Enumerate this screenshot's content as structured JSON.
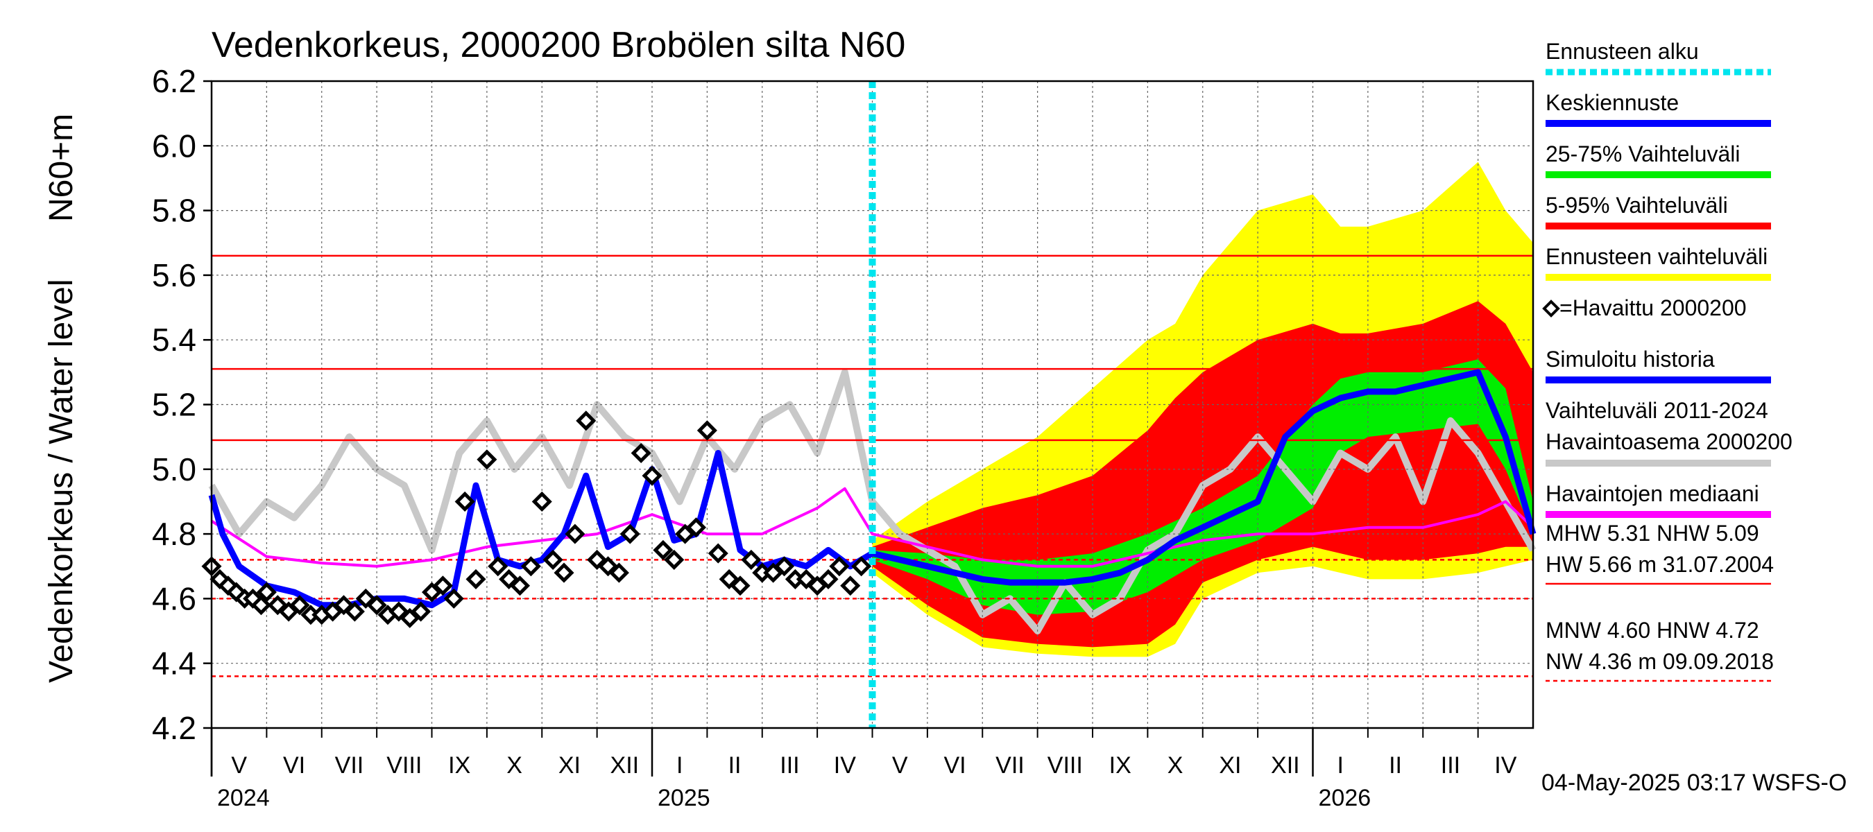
{
  "chart_data": {
    "type": "area",
    "title": "Vedenkorkeus, 2000200 Brobölen silta N60",
    "ylabel_top": "N60+m",
    "ylabel": "Vedenkorkeus / Water level",
    "ylim": [
      4.2,
      6.2
    ],
    "yticks": [
      "6.2",
      "6.0",
      "5.8",
      "5.6",
      "5.4",
      "5.2",
      "5.0",
      "4.8",
      "4.6",
      "4.4",
      "4.2"
    ],
    "months": [
      "V",
      "VI",
      "VII",
      "VIII",
      "IX",
      "X",
      "XI",
      "XII",
      "I",
      "II",
      "III",
      "IV",
      "V",
      "VI",
      "VII",
      "VIII",
      "IX",
      "X",
      "XI",
      "XII",
      "I",
      "II",
      "III",
      "IV"
    ],
    "years": [
      {
        "label": "2024",
        "month_index": 0
      },
      {
        "label": "2025",
        "month_index": 8
      },
      {
        "label": "2026",
        "month_index": 20
      }
    ],
    "forecast_start_month": 12,
    "grid": true,
    "reference_lines": [
      {
        "name": "HW",
        "value": 5.66,
        "style": "solid"
      },
      {
        "name": "MHW",
        "value": 5.31,
        "style": "solid"
      },
      {
        "name": "NHW",
        "value": 5.09,
        "style": "solid"
      },
      {
        "name": "HNW",
        "value": 4.72,
        "style": "dashed"
      },
      {
        "name": "MNW",
        "value": 4.6,
        "style": "dashed"
      },
      {
        "name": "NW",
        "value": 4.36,
        "style": "dashed"
      }
    ],
    "series": [
      {
        "name": "Keskiennuste",
        "kind": "line",
        "color": "#0000ff",
        "x": [
          0,
          0.2,
          0.5,
          1,
          1.5,
          2,
          2.5,
          3,
          3.5,
          4,
          4.4,
          4.8,
          5.2,
          5.6,
          6,
          6.4,
          6.8,
          7.2,
          7.6,
          8,
          8.4,
          8.8,
          9.2,
          9.6,
          10,
          10.4,
          10.8,
          11.2,
          11.6,
          12,
          12.5,
          13,
          13.5,
          14,
          14.5,
          15,
          15.5,
          16,
          16.5,
          17,
          17.5,
          18,
          18.5,
          19,
          19.5,
          20,
          20.5,
          21,
          21.5,
          22,
          22.5,
          23,
          23.5,
          24
        ],
        "y": [
          4.92,
          4.8,
          4.7,
          4.64,
          4.62,
          4.58,
          4.58,
          4.6,
          4.6,
          4.58,
          4.62,
          4.95,
          4.72,
          4.7,
          4.72,
          4.8,
          4.98,
          4.76,
          4.8,
          5.0,
          4.78,
          4.8,
          5.05,
          4.75,
          4.7,
          4.72,
          4.7,
          4.75,
          4.7,
          4.74,
          4.72,
          4.7,
          4.68,
          4.66,
          4.65,
          4.65,
          4.65,
          4.66,
          4.68,
          4.72,
          4.78,
          4.82,
          4.86,
          4.9,
          5.1,
          5.18,
          5.22,
          5.24,
          5.24,
          5.26,
          5.28,
          5.3,
          5.1,
          4.8
        ]
      },
      {
        "name": "Havaintojen mediaani",
        "kind": "line",
        "color": "#ff00ff",
        "x": [
          0,
          1,
          2,
          3,
          4,
          5,
          6,
          7,
          8,
          9,
          10,
          11,
          11.5,
          12,
          13,
          14,
          15,
          16,
          17,
          18,
          19,
          20,
          21,
          22,
          23,
          23.5,
          24
        ],
        "y": [
          4.84,
          4.73,
          4.71,
          4.7,
          4.72,
          4.76,
          4.78,
          4.8,
          4.86,
          4.8,
          4.8,
          4.88,
          4.94,
          4.8,
          4.76,
          4.72,
          4.7,
          4.7,
          4.74,
          4.78,
          4.8,
          4.8,
          4.82,
          4.82,
          4.86,
          4.9,
          4.82
        ]
      },
      {
        "name": "Ennusteen vaihteluväli",
        "kind": "band",
        "color": "#ffff00",
        "x": [
          12,
          13,
          14,
          15,
          16,
          17,
          17.5,
          18,
          19,
          20,
          20.5,
          21,
          22,
          23,
          23.5,
          24
        ],
        "low": [
          4.68,
          4.55,
          4.45,
          4.43,
          4.42,
          4.42,
          4.46,
          4.6,
          4.68,
          4.7,
          4.68,
          4.66,
          4.66,
          4.68,
          4.7,
          4.72
        ],
        "high": [
          4.78,
          4.9,
          5.0,
          5.1,
          5.25,
          5.4,
          5.45,
          5.6,
          5.8,
          5.85,
          5.75,
          5.75,
          5.8,
          5.95,
          5.8,
          5.7
        ]
      },
      {
        "name": "5-95% Vaihteluväli",
        "kind": "band",
        "color": "#ff0000",
        "x": [
          12,
          13,
          14,
          15,
          16,
          17,
          17.5,
          18,
          19,
          20,
          20.5,
          21,
          22,
          23,
          23.5,
          24
        ],
        "low": [
          4.7,
          4.58,
          4.48,
          4.46,
          4.45,
          4.46,
          4.52,
          4.65,
          4.72,
          4.76,
          4.74,
          4.72,
          4.72,
          4.74,
          4.76,
          4.76
        ],
        "high": [
          4.76,
          4.82,
          4.88,
          4.92,
          4.98,
          5.12,
          5.22,
          5.3,
          5.4,
          5.45,
          5.42,
          5.42,
          5.45,
          5.52,
          5.45,
          5.3
        ]
      },
      {
        "name": "25-75% Vaihteluväli",
        "kind": "band",
        "color": "#00ee00",
        "x": [
          12,
          13,
          14,
          15,
          16,
          17,
          18,
          19,
          20,
          20.5,
          21,
          22,
          23,
          23.5,
          24
        ],
        "low": [
          4.72,
          4.66,
          4.58,
          4.55,
          4.56,
          4.62,
          4.72,
          4.78,
          4.88,
          5.05,
          5.1,
          5.12,
          5.14,
          5.0,
          4.8
        ],
        "high": [
          4.75,
          4.74,
          4.72,
          4.72,
          4.74,
          4.8,
          4.88,
          4.98,
          5.2,
          5.28,
          5.3,
          5.3,
          5.34,
          5.25,
          4.9
        ]
      },
      {
        "name": "Havaittu 2000200",
        "kind": "markers",
        "color": "#000000",
        "x": [
          0,
          0.15,
          0.3,
          0.45,
          0.6,
          0.75,
          0.9,
          1.0,
          1.2,
          1.4,
          1.6,
          1.8,
          2.0,
          2.2,
          2.4,
          2.6,
          2.8,
          3.0,
          3.2,
          3.4,
          3.6,
          3.8,
          4.0,
          4.2,
          4.4,
          4.6,
          4.8,
          5.0,
          5.2,
          5.4,
          5.6,
          5.8,
          6.0,
          6.2,
          6.4,
          6.6,
          6.8,
          7.0,
          7.2,
          7.4,
          7.6,
          7.8,
          8.0,
          8.2,
          8.4,
          8.6,
          8.8,
          9.0,
          9.2,
          9.4,
          9.6,
          9.8,
          10.0,
          10.2,
          10.4,
          10.6,
          10.8,
          11.0,
          11.2,
          11.4,
          11.6,
          11.8
        ],
        "y": [
          4.7,
          4.66,
          4.64,
          4.62,
          4.6,
          4.6,
          4.58,
          4.62,
          4.58,
          4.56,
          4.58,
          4.55,
          4.55,
          4.56,
          4.58,
          4.56,
          4.6,
          4.58,
          4.55,
          4.56,
          4.54,
          4.56,
          4.62,
          4.64,
          4.6,
          4.9,
          4.66,
          5.03,
          4.7,
          4.66,
          4.64,
          4.7,
          4.9,
          4.72,
          4.68,
          4.8,
          5.15,
          4.72,
          4.7,
          4.68,
          4.8,
          5.05,
          4.98,
          4.75,
          4.72,
          4.8,
          4.82,
          5.12,
          4.74,
          4.66,
          4.64,
          4.72,
          4.68,
          4.68,
          4.7,
          4.66,
          4.66,
          4.64,
          4.66,
          4.7,
          4.64,
          4.7
        ]
      },
      {
        "name": "Vaihteluväli 2011-2024 Havaintoasema 2000200",
        "kind": "line",
        "color": "#c8c8c8",
        "x": [
          0,
          0.5,
          1,
          1.5,
          2,
          2.5,
          3,
          3.5,
          4,
          4.5,
          5,
          5.5,
          6,
          6.5,
          7,
          7.5,
          8,
          8.5,
          9,
          9.5,
          10,
          10.5,
          11,
          11.5,
          12,
          12.5,
          13,
          13.5,
          14,
          14.5,
          15,
          15.5,
          16,
          16.5,
          17,
          17.5,
          18,
          18.5,
          19,
          19.5,
          20,
          20.5,
          21,
          21.5,
          22,
          22.5,
          23,
          23.5,
          24
        ],
        "y": [
          4.95,
          4.8,
          4.9,
          4.85,
          4.95,
          5.1,
          5.0,
          4.95,
          4.75,
          5.05,
          5.15,
          5.0,
          5.1,
          4.95,
          5.2,
          5.1,
          5.05,
          4.9,
          5.1,
          5.0,
          5.15,
          5.2,
          5.05,
          5.3,
          4.9,
          4.8,
          4.75,
          4.7,
          4.55,
          4.6,
          4.5,
          4.65,
          4.55,
          4.6,
          4.75,
          4.8,
          4.95,
          5.0,
          5.1,
          5.0,
          4.9,
          5.05,
          5.0,
          5.1,
          4.9,
          5.15,
          5.05,
          4.9,
          4.75
        ]
      }
    ],
    "legend": {
      "placement": "right",
      "items": [
        {
          "label": "Ennusteen alku",
          "color": "#00e5ee",
          "style": "dotted"
        },
        {
          "label": "Keskiennuste",
          "color": "#0000ff",
          "style": "solid"
        },
        {
          "label": "25-75% Vaihteluväli",
          "color": "#00ee00",
          "style": "solid"
        },
        {
          "label": "5-95% Vaihteluväli",
          "color": "#ff0000",
          "style": "solid"
        },
        {
          "label": "Ennusteen vaihteluväli",
          "color": "#ffff00",
          "style": "solid"
        },
        {
          "label": "=Havaittu 2000200",
          "color": "#000000",
          "style": "marker"
        },
        {
          "label": "Simuloitu historia",
          "color": "#0000ff",
          "style": "solid"
        },
        {
          "label": "Vaihteluväli 2011-2024",
          "label2": " Havaintoasema 2000200",
          "color": "#c8c8c8",
          "style": "solid"
        },
        {
          "label": "Havaintojen mediaani",
          "color": "#ff00ff",
          "style": "solid"
        }
      ]
    },
    "stats": [
      {
        "line1": "MHW   5.31 NHW   5.09",
        "line2": "HW   5.66 m 31.07.2004",
        "underline": "solid"
      },
      {
        "line1": "MNW   4.60 HNW   4.72",
        "line2": "NW   4.36 m 09.09.2018",
        "underline": "dashed"
      }
    ],
    "footer": "04-May-2025 03:17 WSFS-O"
  }
}
